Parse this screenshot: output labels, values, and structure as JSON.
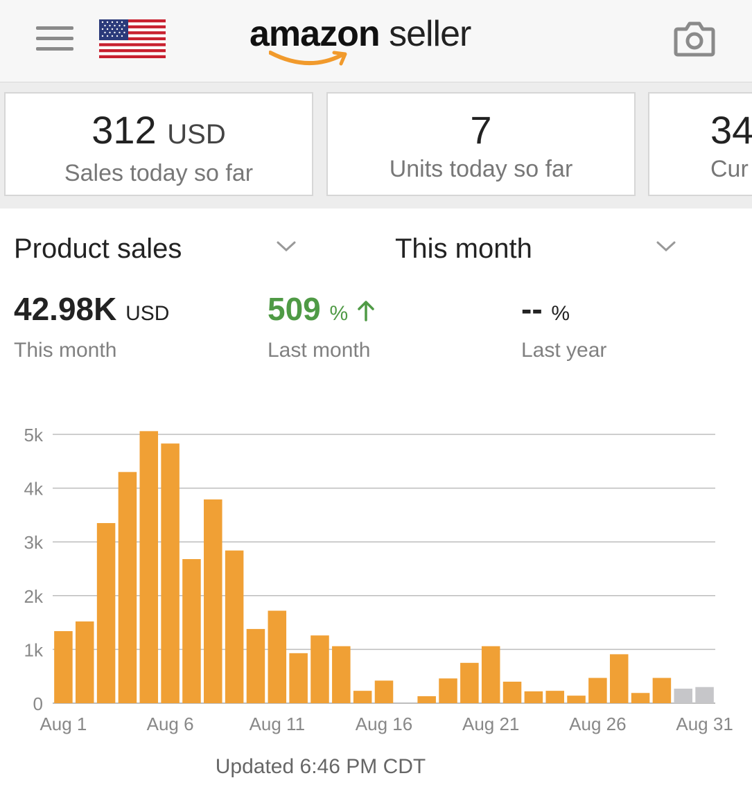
{
  "header": {
    "logo_brand": "amazon",
    "logo_product": "seller",
    "menu_icon": "hamburger-menu-icon",
    "flag_icon": "us-flag-icon",
    "camera_icon": "camera-icon",
    "colors": {
      "brand_orange": "#f0a035",
      "smile_orange": "#f19a2c"
    }
  },
  "kpis": [
    {
      "value": "312",
      "unit": "USD",
      "label": "Sales today so far"
    },
    {
      "value": "7",
      "unit": "",
      "label": "Units today so far"
    },
    {
      "value": "34",
      "unit": "",
      "label": "Cur"
    }
  ],
  "selectors": {
    "metric": "Product sales",
    "period": "This month"
  },
  "summary": {
    "this_month": {
      "value": "42.98K",
      "unit": "USD",
      "label": "This month"
    },
    "last_month": {
      "value": "509",
      "unit": "%",
      "label": "Last month",
      "trend": "up",
      "color": "#4f9a45"
    },
    "last_year": {
      "value": "--",
      "unit": "%",
      "label": "Last year"
    }
  },
  "chart_data": {
    "type": "bar",
    "categories": [
      "Aug 1",
      "Aug 2",
      "Aug 3",
      "Aug 4",
      "Aug 5",
      "Aug 6",
      "Aug 7",
      "Aug 8",
      "Aug 9",
      "Aug 10",
      "Aug 11",
      "Aug 12",
      "Aug 13",
      "Aug 14",
      "Aug 15",
      "Aug 16",
      "Aug 17",
      "Aug 18",
      "Aug 19",
      "Aug 20",
      "Aug 21",
      "Aug 22",
      "Aug 23",
      "Aug 24",
      "Aug 25",
      "Aug 26",
      "Aug 27",
      "Aug 28",
      "Aug 29",
      "Aug 30",
      "Aug 31"
    ],
    "values": [
      1340,
      1520,
      3350,
      4300,
      5060,
      4830,
      2680,
      3790,
      2840,
      1380,
      1720,
      930,
      1260,
      1060,
      230,
      420,
      0,
      130,
      460,
      750,
      1060,
      400,
      220,
      230,
      140,
      470,
      910,
      190,
      470,
      270,
      300
    ],
    "projected": [
      false,
      false,
      false,
      false,
      false,
      false,
      false,
      false,
      false,
      false,
      false,
      false,
      false,
      false,
      false,
      false,
      false,
      false,
      false,
      false,
      false,
      false,
      false,
      false,
      false,
      false,
      false,
      false,
      false,
      true,
      true
    ],
    "xticks": [
      "Aug 1",
      "Aug 6",
      "Aug 11",
      "Aug 16",
      "Aug 21",
      "Aug 26",
      "Aug 31"
    ],
    "yticks": [
      "0",
      "1k",
      "2k",
      "3k",
      "4k",
      "5k"
    ],
    "ylim": [
      0,
      5000
    ],
    "grid": true,
    "colors": {
      "bar": "#f0a035",
      "projected": "#c6c6c9",
      "grid": "#bdbdbd"
    },
    "title": "",
    "xlabel": "",
    "ylabel": ""
  },
  "footer": {
    "updated": "Updated 6:46 PM CDT"
  }
}
